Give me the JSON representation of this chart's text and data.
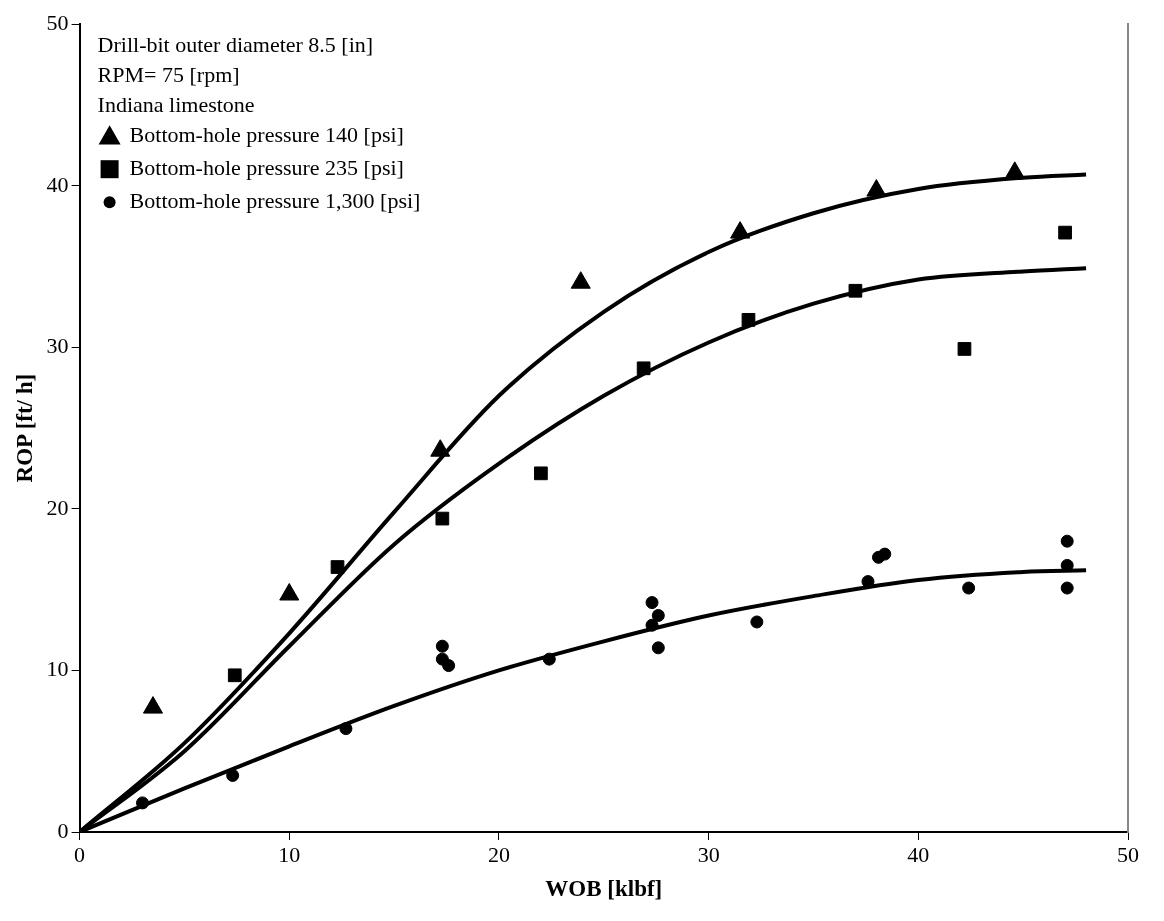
{
  "chart_data": {
    "type": "scatter",
    "xlabel": "WOB [klbf]",
    "ylabel": "ROP [ft/ h]",
    "xlim": [
      0,
      50
    ],
    "ylim": [
      0,
      50
    ],
    "xticks": [
      0,
      10,
      20,
      30,
      40,
      50
    ],
    "yticks": [
      0,
      10,
      20,
      30,
      40,
      50
    ],
    "grid": false,
    "legend": "top left",
    "annotations": [
      "Drill-bit outer diameter 8.5 [in]",
      "RPM= 75 [rpm]",
      "Indiana limestone"
    ],
    "series": [
      {
        "name": "Bottom-hole pressure 140 [psi]",
        "color": "#000000",
        "marker": "triangle",
        "x": [
          3.5,
          10,
          17.2,
          23.9,
          31.5,
          38,
          44.6
        ],
        "values": [
          7.7,
          14.7,
          23.6,
          34,
          37.1,
          39.7,
          40.8
        ]
      },
      {
        "name": "Bottom-hole pressure 235 [psi]",
        "color": "#000000",
        "marker": "square",
        "x": [
          7.4,
          12.3,
          17.3,
          22,
          26.9,
          31.9,
          37,
          42.2,
          47
        ],
        "values": [
          9.7,
          16.4,
          19.4,
          22.2,
          28.7,
          31.7,
          33.5,
          29.9,
          37.1
        ]
      },
      {
        "name": "Bottom-hole pressure 1,300 [psi]",
        "color": "#000000",
        "marker": "circle",
        "x": [
          3,
          7.3,
          12.7,
          17.3,
          17.3,
          17.6,
          22.4,
          27.3,
          27.3,
          27.6,
          27.6,
          32.3,
          37.6,
          38.1,
          38.4,
          42.4,
          47.1,
          47.1,
          47.1
        ],
        "values": [
          1.8,
          3.5,
          6.4,
          11.5,
          10.7,
          10.3,
          10.7,
          14.2,
          12.8,
          13.4,
          11.4,
          13,
          15.5,
          17,
          17.2,
          15.1,
          18,
          16.5,
          15.1
        ]
      },
      {
        "type": "line",
        "color": "#000000",
        "marker": "none",
        "x": [
          0,
          5,
          10,
          15,
          20,
          25,
          30,
          35,
          40,
          45,
          48
        ],
        "values": [
          0,
          5.5,
          12.3,
          19.8,
          27,
          32.2,
          35.9,
          38.3,
          39.8,
          40.5,
          40.7
        ]
      },
      {
        "type": "line",
        "color": "#000000",
        "marker": "none",
        "x": [
          0,
          5,
          10,
          15,
          20,
          25,
          30,
          35,
          40,
          45,
          48
        ],
        "values": [
          0,
          5,
          11.5,
          17.8,
          22.8,
          27,
          30.3,
          32.7,
          34.2,
          34.7,
          34.9
        ]
      },
      {
        "type": "line",
        "color": "#000000",
        "marker": "none",
        "x": [
          0,
          5,
          10,
          15,
          20,
          25,
          30,
          35,
          40,
          45,
          48
        ],
        "values": [
          0,
          2.7,
          5.3,
          7.8,
          10,
          11.8,
          13.4,
          14.6,
          15.6,
          16.1,
          16.2
        ]
      }
    ]
  }
}
